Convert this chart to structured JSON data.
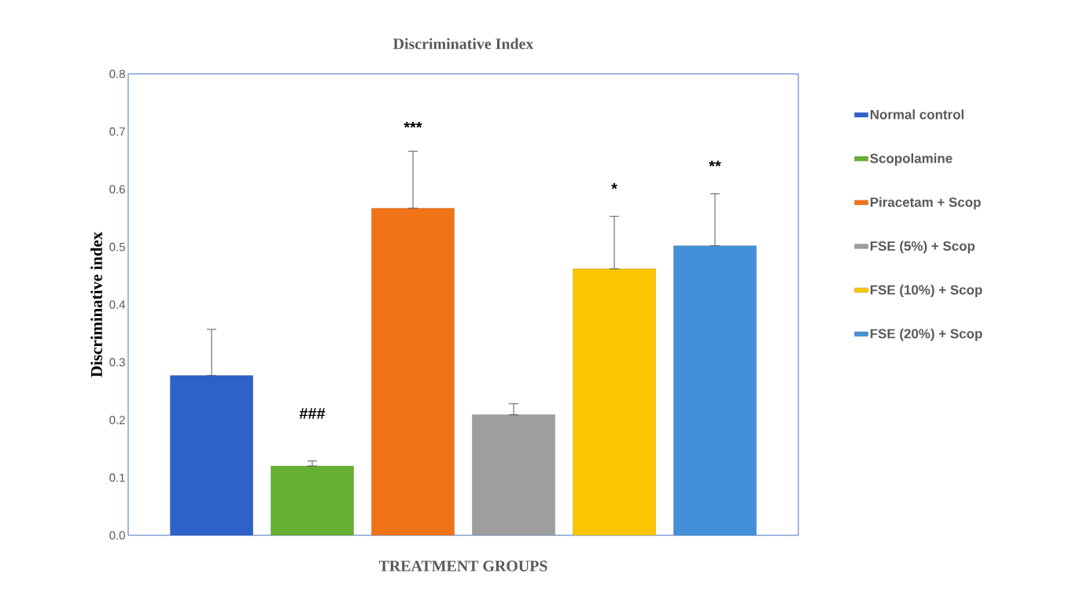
{
  "chart_data": {
    "type": "bar",
    "title": "Discriminative Index",
    "xlabel": "TREATMENT GROUPS",
    "ylabel": "Discriminative index",
    "categories": [
      null
    ],
    "series": [
      {
        "name": "Normal control",
        "color": "#2e62c8",
        "values": [
          0.277
        ],
        "errors": [
          [
            0.277,
            0.357
          ]
        ]
      },
      {
        "name": "Scopolamine",
        "color": "#66b032",
        "values": [
          0.12
        ],
        "errors": [
          [
            0.12,
            0.129
          ]
        ]
      },
      {
        "name": "Piracetam + Scop",
        "color": "#f07318",
        "values": [
          0.567
        ],
        "errors": [
          [
            0.567,
            0.666
          ]
        ]
      },
      {
        "name": "FSE (5%)  +  Scop",
        "color": "#9e9e9e",
        "values": [
          0.209
        ],
        "errors": [
          [
            0.209,
            0.228
          ]
        ]
      },
      {
        "name": "FSE (10%) + Scop",
        "color": "#f9c600",
        "values": [
          0.462
        ],
        "errors": [
          [
            0.462,
            0.553
          ]
        ]
      },
      {
        "name": "FSE (20%)  + Scop",
        "color": "#4490d8",
        "values": [
          0.502
        ],
        "errors": [
          [
            0.502,
            0.592
          ]
        ]
      }
    ],
    "annotations": [
      "###",
      "***",
      "*",
      "**"
    ],
    "ylim": [
      0,
      0.8
    ],
    "yticks": [
      {
        "value": 0,
        "label": "0.0"
      },
      0.1,
      0.2,
      0.3,
      0.4,
      0.5,
      0.6,
      0.7,
      0.8
    ],
    "grid": false,
    "legend": "right"
  }
}
